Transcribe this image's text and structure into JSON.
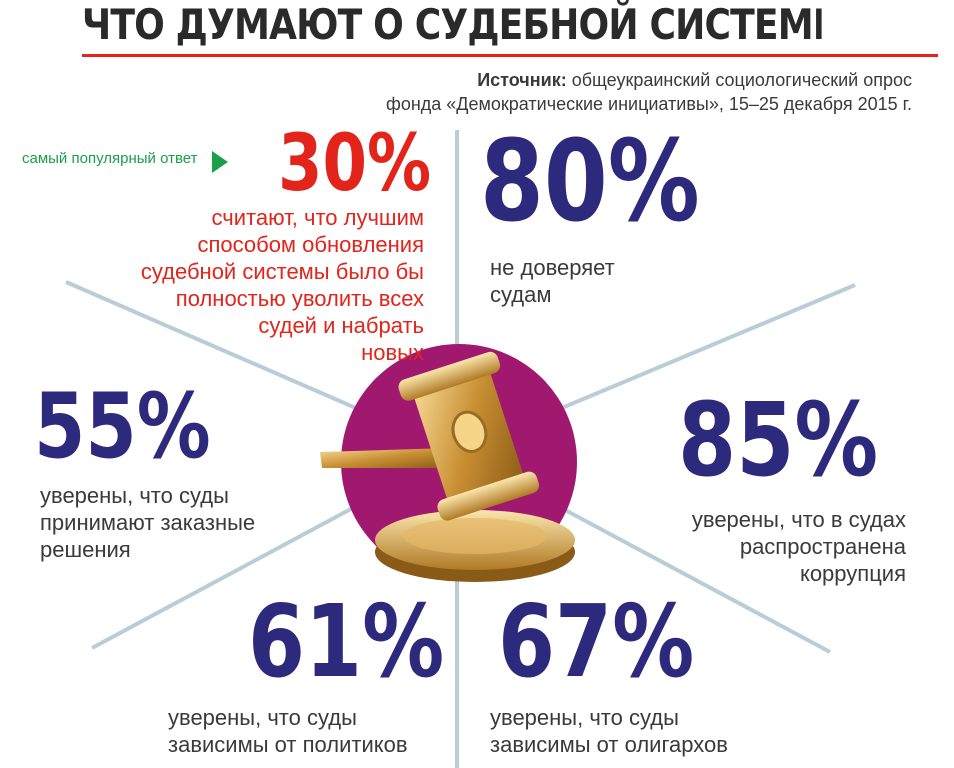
{
  "title": "ЧТО ДУМАЮТ О СУДЕБНОЙ СИСТЕМЕ УКРАИНЦЫ",
  "source": {
    "label": "Источник:",
    "line1": " общеукраинский социологический опрос",
    "line2": "фонда «Демократические инициативы», 15–25 декабря 2015 г."
  },
  "popular_answer": "самый популярный ответ",
  "stats": {
    "s30": {
      "value": "30%",
      "lines": [
        "считают, что лучшим",
        "способом обновления",
        "судебной системы было бы",
        "полностью уволить всех",
        "судей и набрать",
        "новых"
      ]
    },
    "s80": {
      "value": "80%",
      "lines": [
        "не доверяет",
        "судам"
      ]
    },
    "s55": {
      "value": "55%",
      "lines": [
        "уверены, что суды",
        "принимают заказные",
        "решения"
      ]
    },
    "s85": {
      "value": "85%",
      "lines": [
        "уверены, что в судах",
        "распространена",
        "коррупция"
      ]
    },
    "s61": {
      "value": "61%",
      "lines": [
        "уверены, что суды",
        "зависимы от политиков"
      ]
    },
    "s67": {
      "value": "67%",
      "lines": [
        "уверены, что суды",
        "зависимы от олигархов"
      ]
    }
  },
  "colors": {
    "accent_red": "#e2241b",
    "number_blue": "#2d2a7d",
    "highlight_green": "#1aa04a",
    "circle_magenta": "#a0196e",
    "rays": "#b9cdd9"
  }
}
